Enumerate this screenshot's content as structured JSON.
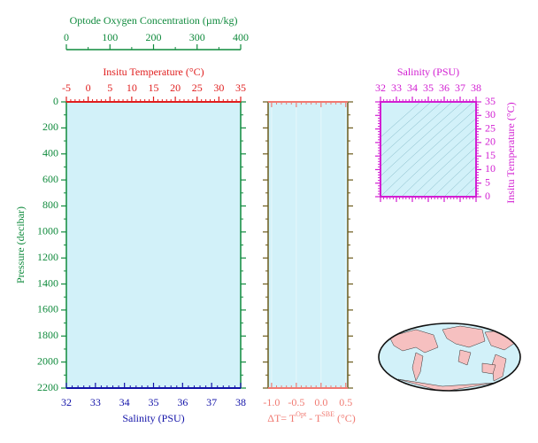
{
  "chart_data": [
    {
      "type": "profile",
      "ylabel": "Pressure (decibar)",
      "ylim": [
        0,
        2200
      ],
      "yticks": [
        0,
        200,
        400,
        600,
        800,
        1000,
        1200,
        1400,
        1600,
        1800,
        2000,
        2200
      ],
      "xlabel": "Salinity (PSU)",
      "xlim": [
        32,
        38
      ],
      "xticks": [
        32,
        33,
        34,
        35,
        36,
        37,
        38
      ],
      "xcolor": "#1212a8",
      "x2label": "Insitu Temperature (°C)",
      "x2lim": [
        -5,
        35
      ],
      "x2ticks": [
        -5,
        0,
        5,
        10,
        15,
        20,
        25,
        30,
        35
      ],
      "x2color": "#e01e1e",
      "x3label": "Optode Oxygen Concentration (µm/kg)",
      "x3lim": [
        0,
        400
      ],
      "x3ticks": [
        0,
        100,
        200,
        300,
        400
      ],
      "x3color": "#0f8a3c",
      "ycolor": "#0f8a3c",
      "background": "#d2f1f9"
    },
    {
      "type": "difference",
      "xlabel": [
        "ΔT= T",
        "Opt",
        " - T",
        "SBE",
        " (°C)"
      ],
      "xlim": [
        -1.07,
        0.54
      ],
      "xticks": [
        {
          "value": -1,
          "label": "-1.0"
        },
        -0.5,
        {
          "value": 0,
          "label": "0.0"
        },
        0.5
      ],
      "xcolor": "#f07a72",
      "ylim": [
        0,
        2200
      ],
      "yticks": [
        0,
        200,
        400,
        600,
        800,
        1000,
        1200,
        1400,
        1600,
        1800,
        2000,
        2200
      ],
      "ycolor": "#6b5a1a",
      "background": "#d2f1f9"
    },
    {
      "type": "ts",
      "xlabel": "Salinity (PSU)",
      "xlim": [
        32,
        38
      ],
      "xticks": [
        32,
        33,
        34,
        35,
        36,
        37,
        38
      ],
      "ylabel": "Insitu Temperature (°C)",
      "ylim": [
        0,
        35
      ],
      "yticks": [
        0,
        5,
        10,
        15,
        20,
        25,
        30,
        35
      ],
      "color": "#d21fd2",
      "background": "#d2f1f9"
    }
  ]
}
